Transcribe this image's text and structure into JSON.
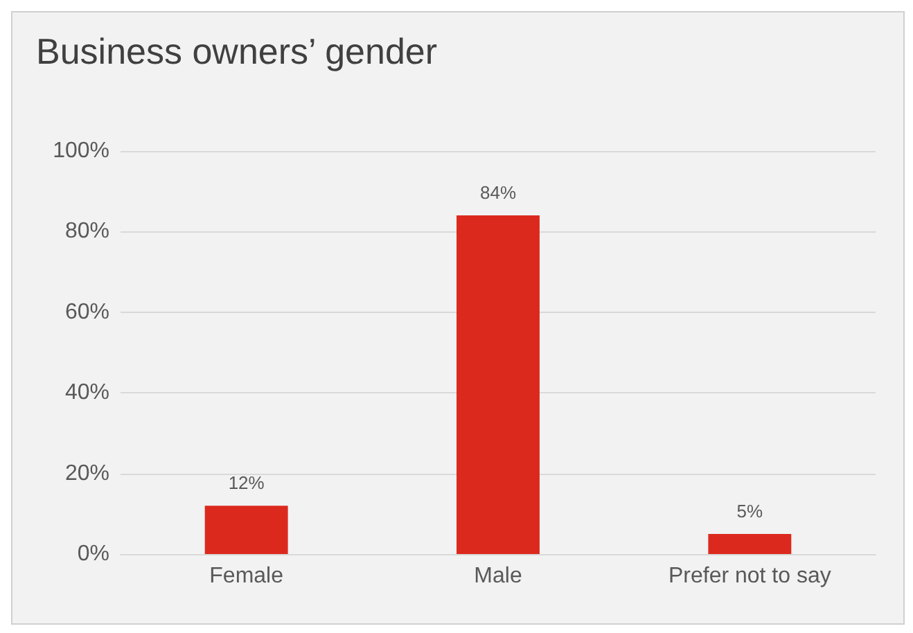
{
  "chart_data": {
    "type": "bar",
    "title": "Business owners’ gender",
    "categories": [
      "Female",
      "Male",
      "Prefer not to say"
    ],
    "values": [
      12,
      84,
      5
    ],
    "value_labels": [
      "12%",
      "84%",
      "5%"
    ],
    "color": "#dc291e",
    "ylim": [
      0,
      100
    ],
    "yticks": [
      {
        "value": 0,
        "label": "0%"
      },
      {
        "value": 20,
        "label": "20%"
      },
      {
        "value": 40,
        "label": "40%"
      },
      {
        "value": 60,
        "label": "60%"
      },
      {
        "value": 80,
        "label": "80%"
      },
      {
        "value": 100,
        "label": "100%"
      }
    ],
    "grid": "y"
  }
}
